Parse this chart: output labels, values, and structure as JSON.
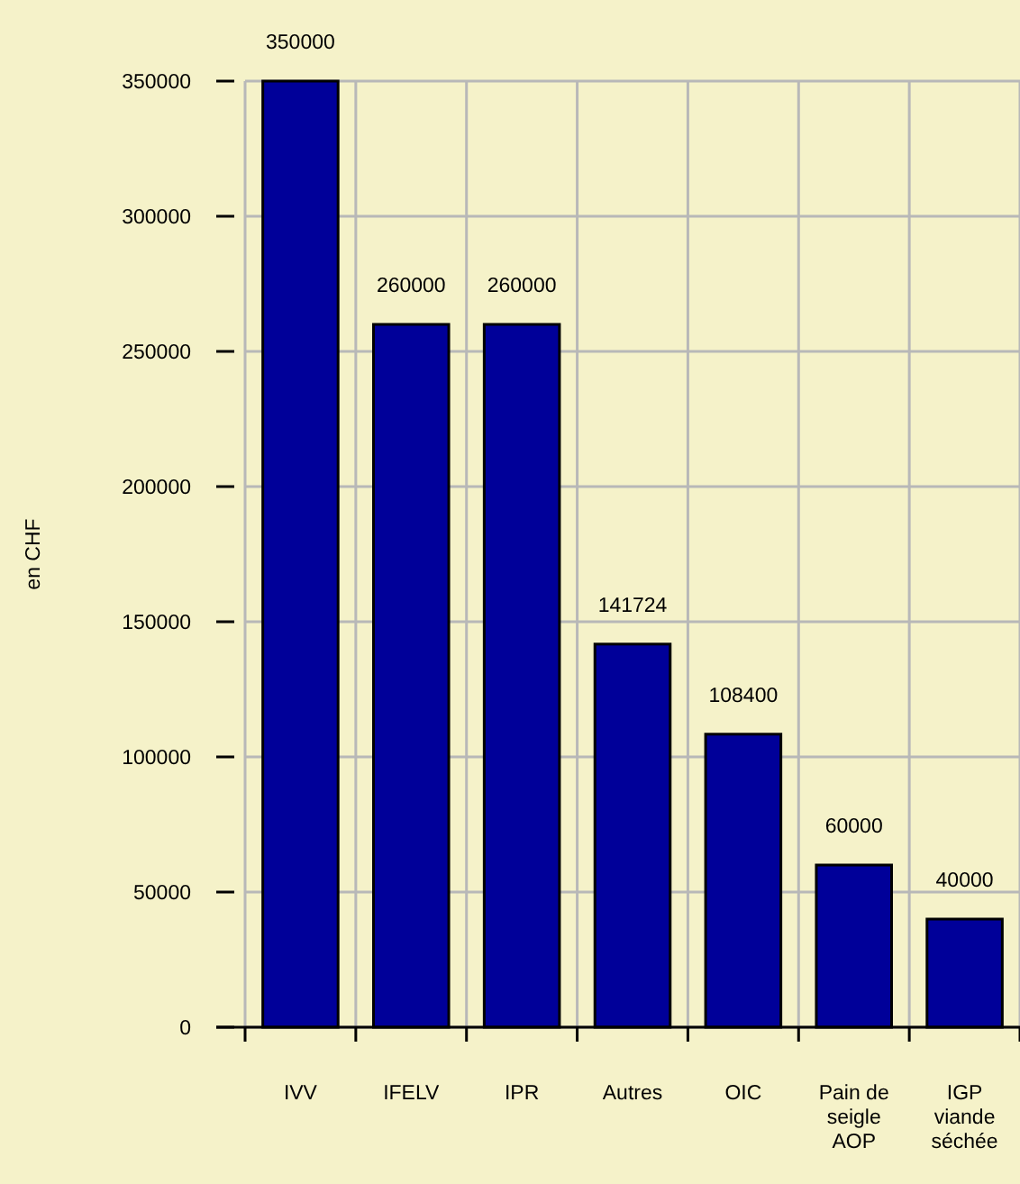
{
  "chart_data": {
    "type": "bar",
    "ylabel": "en CHF",
    "categories": [
      "IVV",
      "IFELV",
      "IPR",
      "Autres",
      "OIC",
      "Pain de seigle AOP",
      "IGP viande séchée"
    ],
    "values": [
      350000,
      260000,
      260000,
      141724,
      108400,
      60000,
      40000
    ],
    "color": "#000099",
    "ylim": [
      0,
      350000
    ],
    "yticks": [
      0,
      50000,
      100000,
      150000,
      200000,
      250000,
      300000,
      350000
    ],
    "grid": true,
    "data_labels": true
  }
}
